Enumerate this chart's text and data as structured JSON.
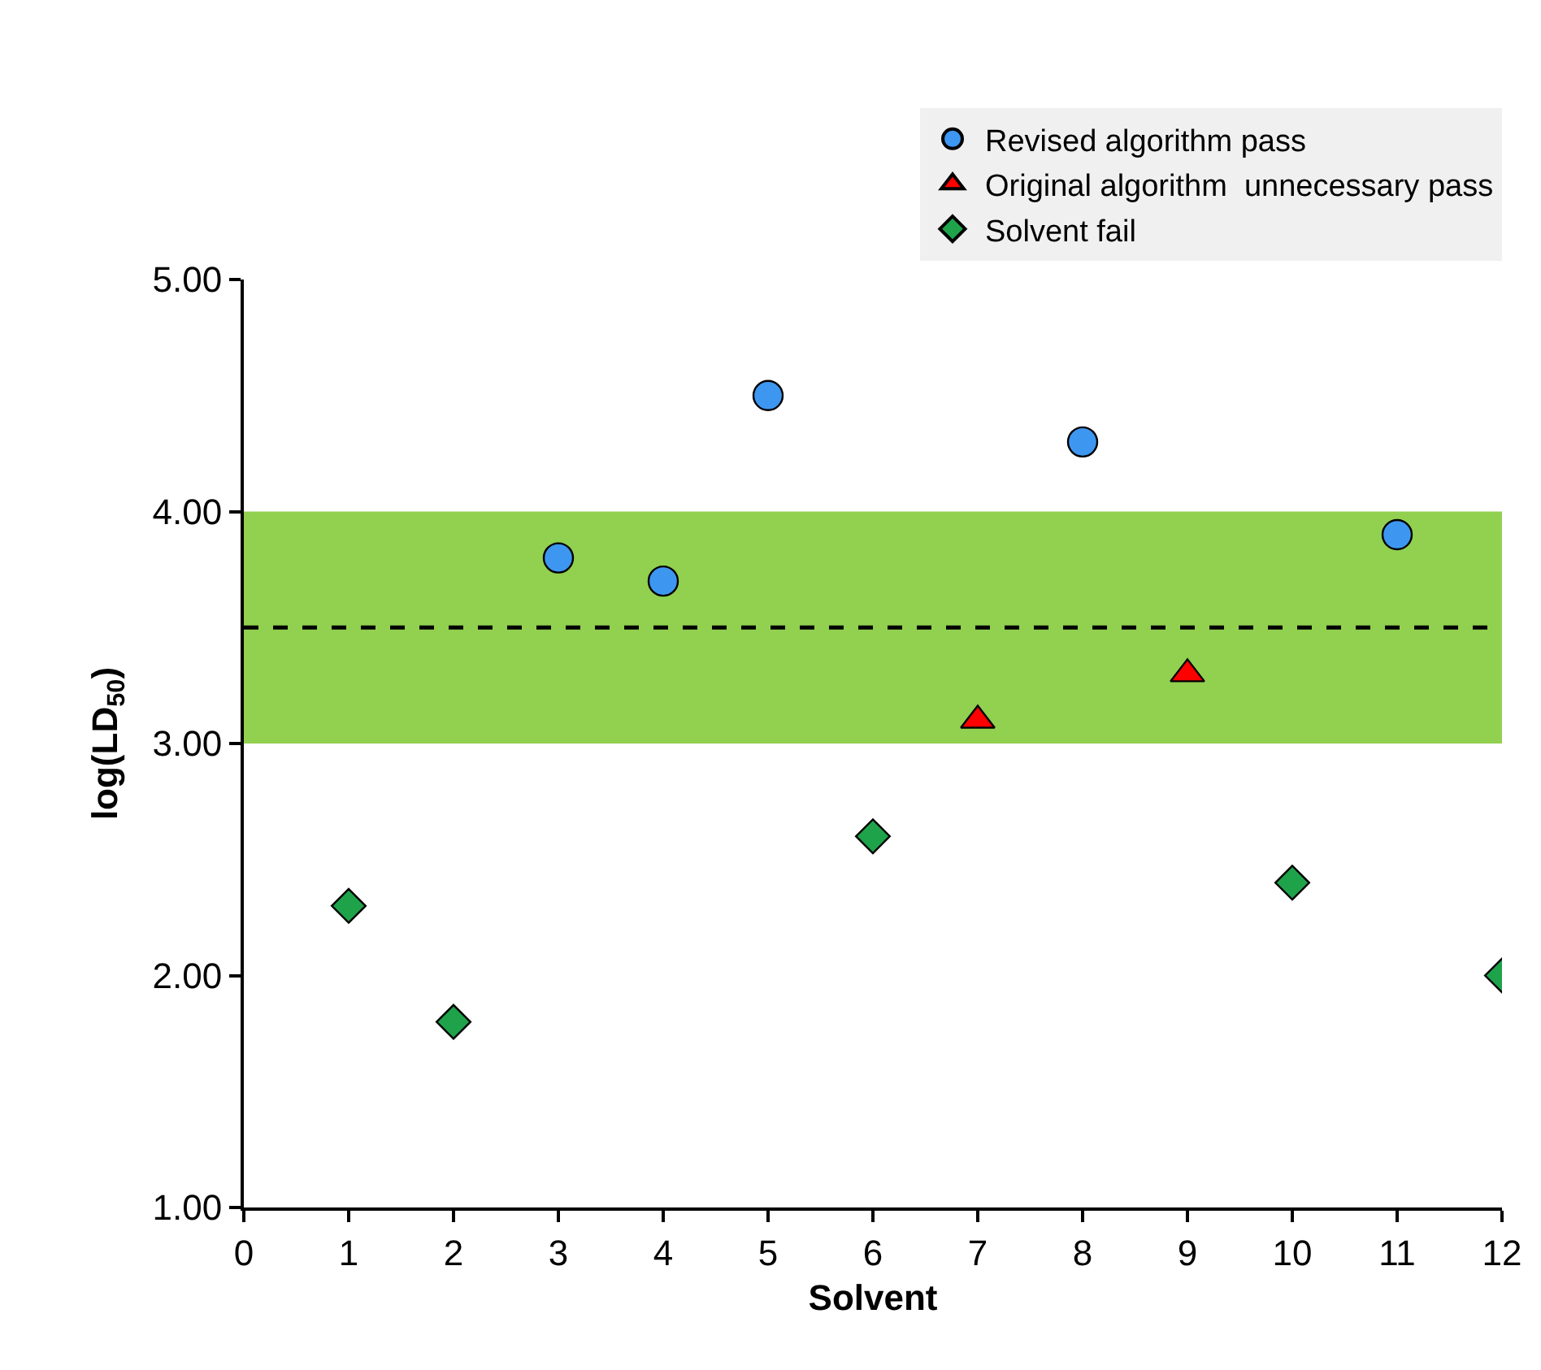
{
  "chart_data": {
    "type": "scatter",
    "xlabel": "Solvent",
    "ylabel": "log(LD$_{50}$)",
    "series": [
      {
        "name": "Revised algorithm pass",
        "color": "#3d97f0",
        "marker": "circle",
        "x": [
          3,
          4,
          5,
          8,
          11
        ],
        "values": [
          3.8,
          3.7,
          4.5,
          4.3,
          3.9
        ]
      },
      {
        "name": "Original algorithm  unnecessary pass",
        "color": "#ff0000",
        "marker": "triangle",
        "x": [
          7,
          9
        ],
        "values": [
          3.1,
          3.3
        ]
      },
      {
        "name": "Solvent fail",
        "color": "#1fa34a",
        "marker": "diamond",
        "x": [
          1,
          2,
          6,
          10,
          12
        ],
        "values": [
          2.3,
          1.8,
          2.6,
          2.4,
          2.0
        ]
      }
    ],
    "xlim": [
      0,
      12
    ],
    "xticks": [
      0,
      1,
      2,
      3,
      4,
      5,
      6,
      7,
      8,
      9,
      10,
      11,
      12
    ],
    "ylim": [
      1,
      5
    ],
    "yticks": [
      {
        "value": 1,
        "label": "1.00"
      },
      {
        "value": 2,
        "label": "2.00"
      },
      {
        "value": 3,
        "label": "3.00"
      },
      {
        "value": 4,
        "label": "4.00"
      },
      {
        "value": 5,
        "label": "5.00"
      }
    ],
    "bands": [
      {
        "axis": "y",
        "from": 3,
        "to": 4,
        "color": "#92d050"
      }
    ],
    "ref_lines": [
      {
        "axis": "y",
        "value": 3.5,
        "color": "#000000",
        "line_style": "dashed"
      }
    ],
    "grid": false,
    "legend": "top right"
  }
}
